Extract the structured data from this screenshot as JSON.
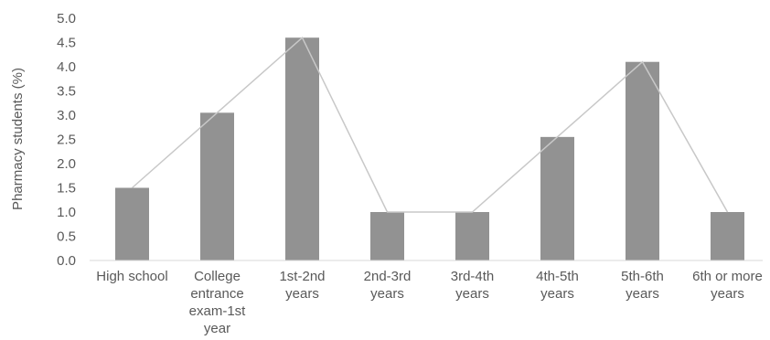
{
  "chart_data": {
    "type": "bar",
    "title": "",
    "xlabel": "",
    "ylabel": "Pharmacy students (%)",
    "ylim": [
      0,
      5
    ],
    "yticks": [
      "0.0",
      "0.5",
      "1.0",
      "1.5",
      "2.0",
      "2.5",
      "3.0",
      "3.5",
      "4.0",
      "4.5",
      "5.0"
    ],
    "grid": false,
    "categories": [
      [
        "High school"
      ],
      [
        "College",
        "entrance",
        "exam-1st",
        "year"
      ],
      [
        "1st-2nd",
        "years"
      ],
      [
        "2nd-3rd",
        "years"
      ],
      [
        "3rd-4th",
        "years"
      ],
      [
        "4th-5th",
        "years"
      ],
      [
        "5th-6th",
        "years"
      ],
      [
        "6th or more",
        "years"
      ]
    ],
    "values": [
      1.5,
      3.05,
      4.6,
      1.0,
      1.0,
      2.55,
      4.1,
      1.0
    ],
    "overlay_line": true,
    "colors": {
      "bar": "#929292",
      "line": "#c8c8c8",
      "axis": "#d9d9d9",
      "text": "#595959"
    }
  }
}
